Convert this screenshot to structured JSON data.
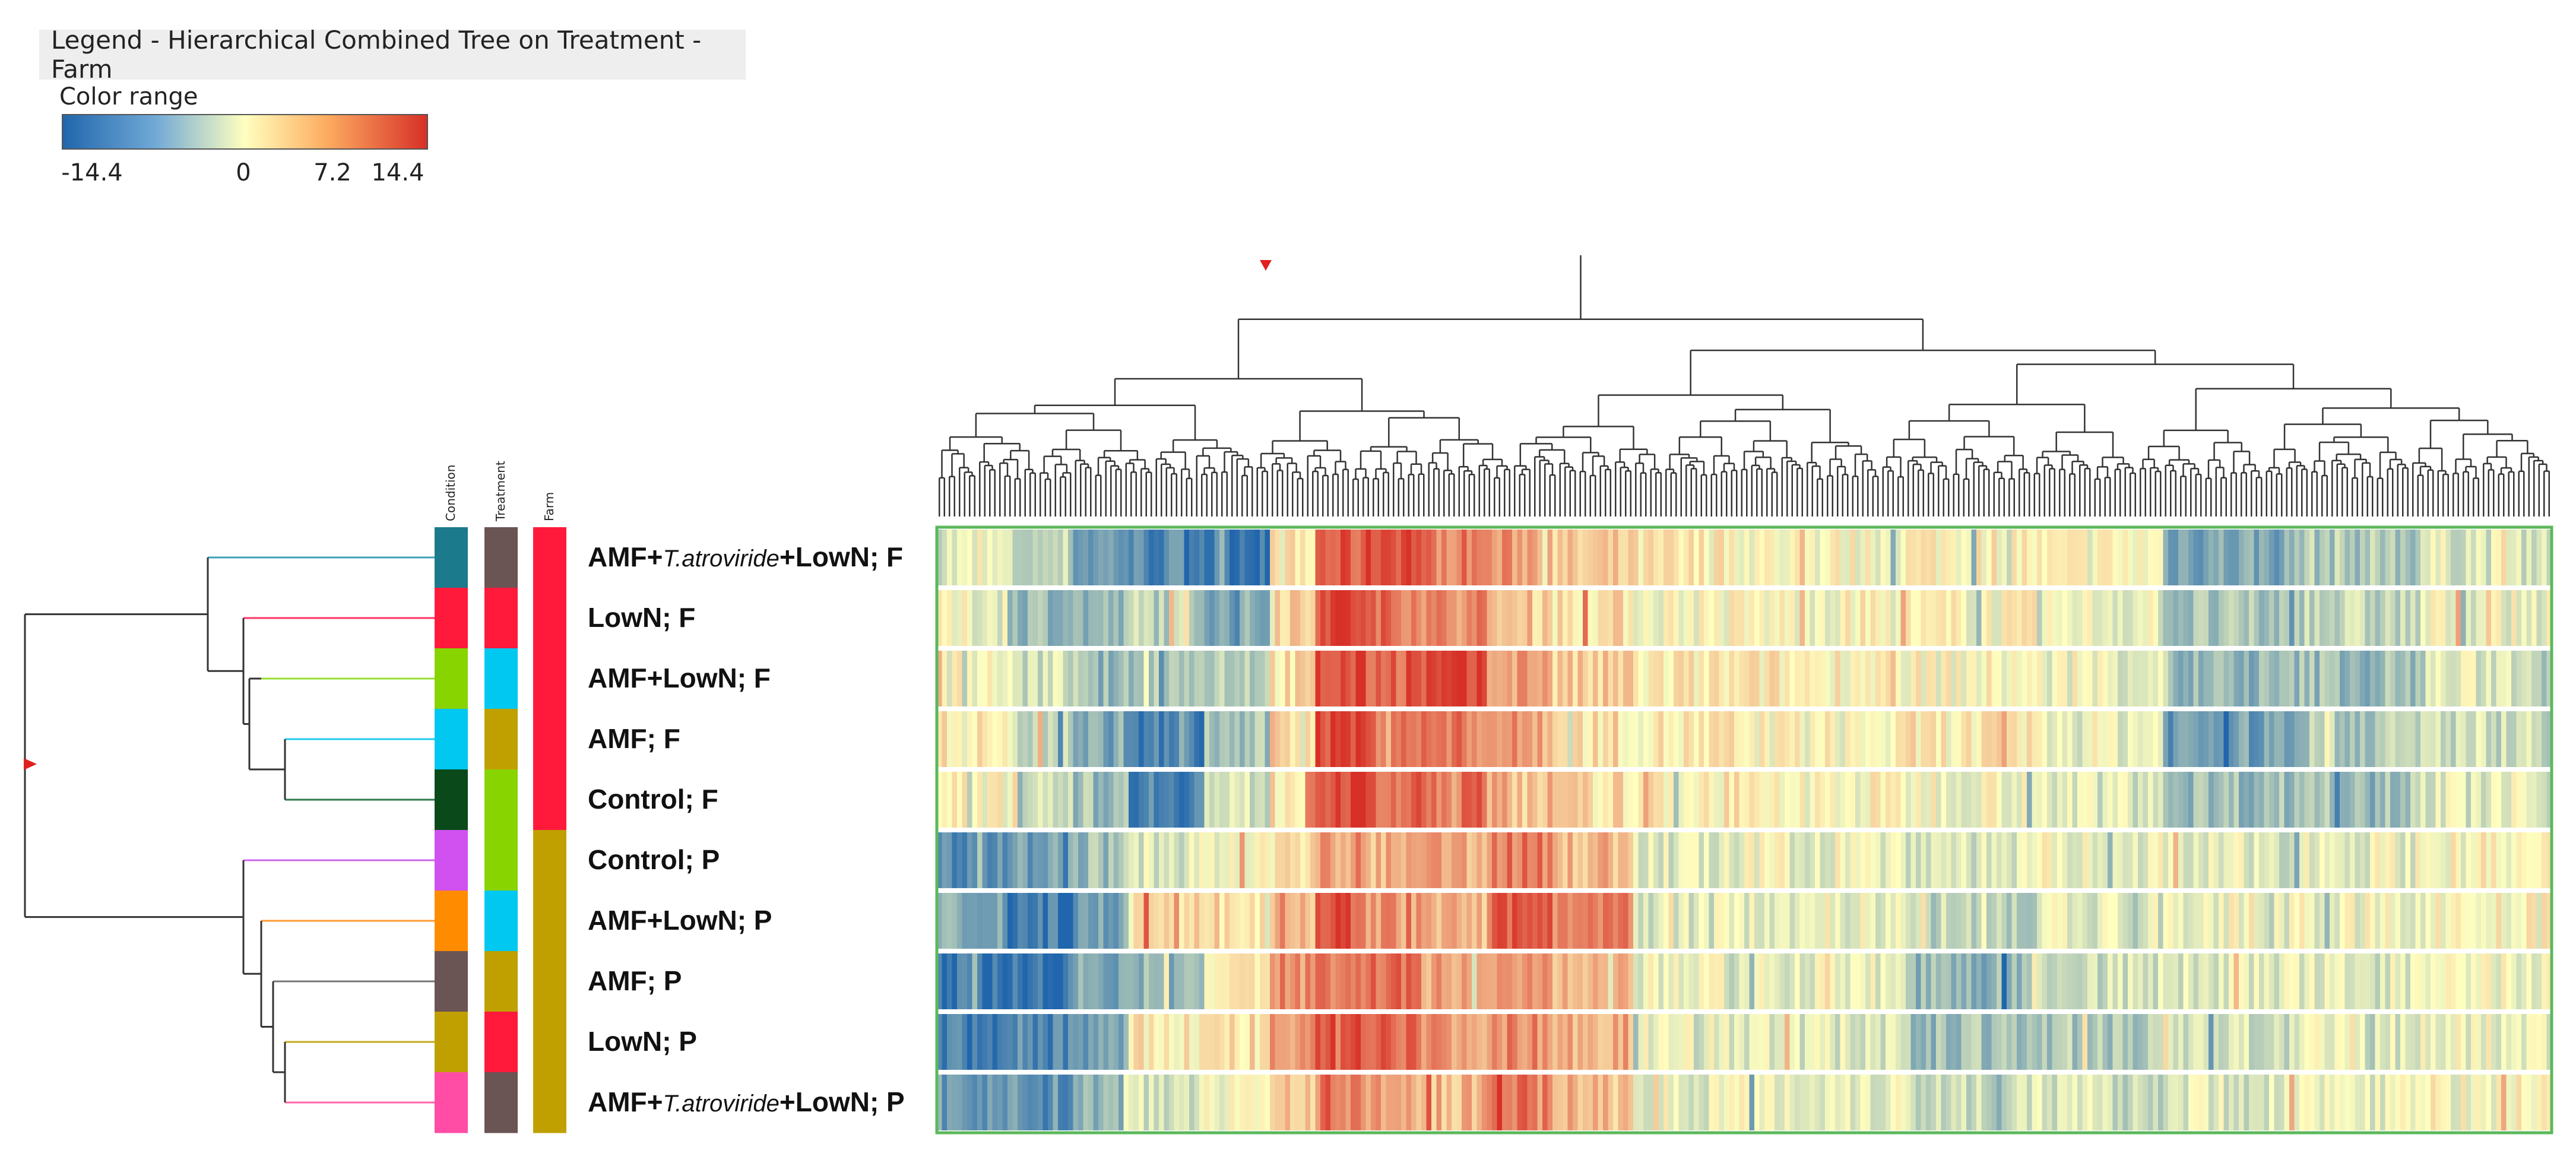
{
  "legend": {
    "title": "Legend - Hierarchical Combined Tree on Treatment - Farm",
    "color_range_label": "Color range",
    "ticks": [
      "-14.4",
      "0",
      "7.2",
      "14.4"
    ],
    "range": [
      -14.4,
      14.4
    ]
  },
  "column_headers": {
    "condition": "Condition",
    "treatment": "Treatment",
    "farm": "Farm"
  },
  "colors": {
    "neg": "#2166ac",
    "mid": "#ffffbf",
    "pos": "#d73027",
    "heatmap_border": "#5cb85c",
    "dendrogram": "#333333"
  },
  "chart_data": {
    "type": "heatmap",
    "title": "Hierarchical Combined Tree on Treatment - Farm",
    "rows": [
      {
        "prefix": "AMF+",
        "italic": "T.atroviride",
        "suffix": "+LowN; F",
        "condition_color": "#1b7a8c",
        "treatment_color": "#6b5454",
        "farm_color": "#ff1a3c",
        "branch_color": "#3aa0b8"
      },
      {
        "prefix": "LowN; F",
        "italic": "",
        "suffix": "",
        "condition_color": "#ff1a3c",
        "treatment_color": "#ff1a3c",
        "farm_color": "#ff1a3c",
        "branch_color": "#ff3366"
      },
      {
        "prefix": "AMF+LowN; F",
        "italic": "",
        "suffix": "",
        "condition_color": "#88d400",
        "treatment_color": "#00c8f0",
        "farm_color": "#ff1a3c",
        "branch_color": "#99dd33"
      },
      {
        "prefix": "AMF; F",
        "italic": "",
        "suffix": "",
        "condition_color": "#00c8f0",
        "treatment_color": "#c0a000",
        "farm_color": "#ff1a3c",
        "branch_color": "#22ccee"
      },
      {
        "prefix": "Control; F",
        "italic": "",
        "suffix": "",
        "condition_color": "#0a4a1a",
        "treatment_color": "#88d400",
        "farm_color": "#ff1a3c",
        "branch_color": "#2d7a4a"
      },
      {
        "prefix": "Control; P",
        "italic": "",
        "suffix": "",
        "condition_color": "#d050f0",
        "treatment_color": "#88d400",
        "farm_color": "#c0a000",
        "branch_color": "#cc66ee"
      },
      {
        "prefix": "AMF+LowN; P",
        "italic": "",
        "suffix": "",
        "condition_color": "#ff8c00",
        "treatment_color": "#00c8f0",
        "farm_color": "#c0a000",
        "branch_color": "#ff9933"
      },
      {
        "prefix": "AMF; P",
        "italic": "",
        "suffix": "",
        "condition_color": "#6b5454",
        "treatment_color": "#c0a000",
        "farm_color": "#c0a000",
        "branch_color": "#777777"
      },
      {
        "prefix": "LowN; P",
        "italic": "",
        "suffix": "",
        "condition_color": "#c0a000",
        "treatment_color": "#ff1a3c",
        "farm_color": "#c0a000",
        "branch_color": "#c8a820"
      },
      {
        "prefix": "AMF+",
        "italic": "T.atroviride",
        "suffix": "+LowN; P",
        "condition_color": "#ff4da6",
        "treatment_color": "#6b5454",
        "farm_color": "#c0a000",
        "branch_color": "#ff66aa"
      }
    ],
    "bands": [
      {
        "from": 0.0,
        "to": 0.045,
        "values": [
          -2,
          -1,
          0,
          1,
          0,
          -10,
          -8,
          -13,
          -12,
          -9
        ]
      },
      {
        "from": 0.045,
        "to": 0.085,
        "values": [
          -4,
          -6,
          -3,
          -3,
          -2,
          -9,
          -12,
          -13,
          -11,
          -10
        ]
      },
      {
        "from": 0.085,
        "to": 0.12,
        "values": [
          -9,
          -7,
          -7,
          -8,
          -6,
          -6,
          -9,
          -8,
          -9,
          -7
        ]
      },
      {
        "from": 0.12,
        "to": 0.165,
        "values": [
          -11,
          -4,
          -5,
          -12,
          -11,
          -2,
          2,
          -7,
          1,
          -2
        ]
      },
      {
        "from": 0.165,
        "to": 0.205,
        "values": [
          -12,
          -8,
          -4,
          -6,
          -3,
          -1,
          3,
          1,
          2,
          0
        ]
      },
      {
        "from": 0.205,
        "to": 0.235,
        "values": [
          1,
          4,
          2,
          3,
          2,
          2,
          5,
          8,
          6,
          4
        ]
      },
      {
        "from": 0.235,
        "to": 0.265,
        "values": [
          11,
          13,
          12,
          13,
          13,
          6,
          12,
          11,
          13,
          9
        ]
      },
      {
        "from": 0.265,
        "to": 0.3,
        "values": [
          13,
          10,
          11,
          10,
          10,
          5,
          7,
          10,
          11,
          6
        ]
      },
      {
        "from": 0.3,
        "to": 0.34,
        "values": [
          9,
          8,
          12,
          9,
          10,
          6,
          5,
          6,
          7,
          5
        ]
      },
      {
        "from": 0.34,
        "to": 0.38,
        "values": [
          7,
          4,
          7,
          7,
          5,
          9,
          11,
          7,
          8,
          10
        ]
      },
      {
        "from": 0.38,
        "to": 0.43,
        "values": [
          3,
          2,
          3,
          2,
          2,
          5,
          8,
          4,
          6,
          5
        ]
      },
      {
        "from": 0.43,
        "to": 0.5,
        "values": [
          1,
          0,
          1,
          1,
          1,
          -2,
          -2,
          -1,
          -1,
          -1
        ]
      },
      {
        "from": 0.5,
        "to": 0.6,
        "values": [
          0,
          0,
          1,
          0,
          0,
          -1,
          -1,
          -1,
          -2,
          -1
        ]
      },
      {
        "from": 0.6,
        "to": 0.68,
        "values": [
          1,
          0,
          0,
          1,
          0,
          -2,
          -4,
          -7,
          -6,
          -3
        ]
      },
      {
        "from": 0.68,
        "to": 0.76,
        "values": [
          0,
          -1,
          -1,
          -1,
          -2,
          -1,
          -2,
          -3,
          -5,
          -3
        ]
      },
      {
        "from": 0.76,
        "to": 0.84,
        "values": [
          -8,
          -6,
          -7,
          -9,
          -6,
          -2,
          -1,
          -2,
          -3,
          -2
        ]
      },
      {
        "from": 0.84,
        "to": 0.92,
        "values": [
          -5,
          -4,
          -6,
          -5,
          -5,
          -1,
          -1,
          -2,
          -2,
          -1
        ]
      },
      {
        "from": 0.92,
        "to": 1.0,
        "values": [
          -2,
          -1,
          -2,
          -3,
          -2,
          0,
          0,
          -1,
          -1,
          0
        ]
      }
    ],
    "column_count": 320
  }
}
